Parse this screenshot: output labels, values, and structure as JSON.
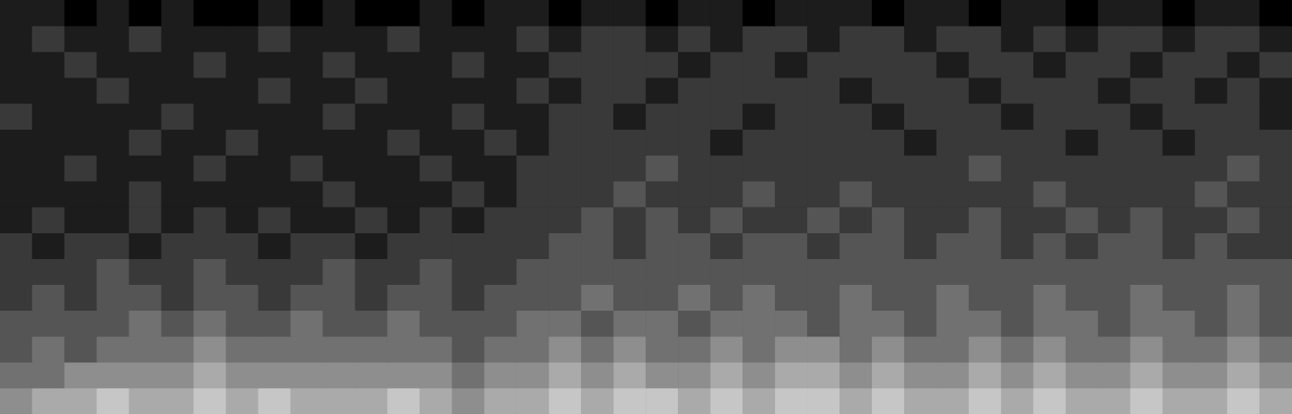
{
  "chart_data": {
    "type": "heatmap",
    "grid": false,
    "tick_labels": false,
    "ylim": [
      0,
      16
    ],
    "color_range": [
      0,
      9
    ],
    "cells": [
      [
        1,
        1,
        0,
        1,
        0,
        1,
        0,
        0,
        1,
        0,
        1,
        0,
        0,
        1,
        0,
        1,
        1,
        0,
        1,
        1,
        0,
        1,
        1,
        0,
        1,
        1,
        1,
        0,
        1,
        1,
        0,
        1,
        1,
        0,
        1,
        1,
        0,
        1,
        1,
        0
      ],
      [
        1,
        2,
        1,
        1,
        2,
        1,
        1,
        1,
        2,
        1,
        1,
        1,
        2,
        1,
        1,
        1,
        2,
        1,
        2,
        2,
        1,
        2,
        1,
        2,
        2,
        1,
        2,
        2,
        1,
        2,
        2,
        1,
        2,
        1,
        2,
        2,
        1,
        2,
        2,
        1
      ],
      [
        1,
        1,
        2,
        1,
        1,
        1,
        2,
        1,
        1,
        1,
        2,
        1,
        1,
        1,
        2,
        1,
        1,
        2,
        2,
        2,
        2,
        1,
        2,
        2,
        1,
        2,
        2,
        2,
        2,
        1,
        2,
        2,
        1,
        2,
        2,
        1,
        2,
        2,
        1,
        2
      ],
      [
        1,
        1,
        1,
        2,
        1,
        1,
        1,
        1,
        2,
        1,
        1,
        2,
        1,
        1,
        1,
        1,
        2,
        1,
        2,
        2,
        1,
        2,
        2,
        2,
        2,
        2,
        1,
        2,
        2,
        2,
        1,
        2,
        2,
        2,
        1,
        2,
        2,
        1,
        2,
        1
      ],
      [
        2,
        1,
        1,
        1,
        1,
        2,
        1,
        1,
        1,
        1,
        2,
        1,
        1,
        1,
        2,
        1,
        1,
        2,
        2,
        1,
        2,
        2,
        2,
        1,
        2,
        2,
        2,
        1,
        2,
        2,
        2,
        1,
        2,
        2,
        2,
        1,
        2,
        2,
        2,
        1
      ],
      [
        1,
        1,
        1,
        1,
        2,
        1,
        1,
        2,
        1,
        1,
        1,
        1,
        2,
        1,
        1,
        2,
        1,
        2,
        2,
        2,
        2,
        2,
        1,
        2,
        2,
        2,
        2,
        2,
        1,
        2,
        2,
        2,
        2,
        1,
        2,
        2,
        1,
        2,
        2,
        2
      ],
      [
        1,
        1,
        2,
        1,
        1,
        1,
        2,
        1,
        1,
        2,
        1,
        1,
        1,
        2,
        1,
        1,
        2,
        2,
        2,
        2,
        3,
        2,
        2,
        2,
        2,
        2,
        2,
        2,
        2,
        2,
        3,
        2,
        2,
        2,
        2,
        2,
        2,
        2,
        3,
        2
      ],
      [
        1,
        1,
        1,
        1,
        2,
        1,
        1,
        1,
        1,
        1,
        2,
        1,
        1,
        1,
        2,
        1,
        2,
        2,
        2,
        3,
        2,
        2,
        2,
        3,
        2,
        2,
        3,
        2,
        2,
        2,
        2,
        2,
        3,
        2,
        2,
        2,
        2,
        3,
        2,
        2
      ],
      [
        1,
        2,
        1,
        1,
        2,
        1,
        2,
        1,
        2,
        1,
        1,
        2,
        1,
        2,
        1,
        2,
        2,
        2,
        3,
        2,
        3,
        2,
        3,
        2,
        2,
        3,
        2,
        3,
        2,
        2,
        3,
        2,
        2,
        3,
        2,
        3,
        2,
        2,
        3,
        2
      ],
      [
        2,
        1,
        2,
        2,
        1,
        2,
        2,
        2,
        1,
        2,
        2,
        1,
        2,
        2,
        2,
        2,
        2,
        3,
        3,
        2,
        3,
        3,
        2,
        3,
        3,
        2,
        3,
        3,
        2,
        3,
        3,
        2,
        3,
        2,
        3,
        3,
        2,
        3,
        2,
        2
      ],
      [
        2,
        2,
        2,
        3,
        2,
        2,
        3,
        2,
        2,
        2,
        3,
        2,
        2,
        3,
        2,
        2,
        3,
        3,
        3,
        3,
        3,
        3,
        3,
        3,
        3,
        3,
        3,
        3,
        3,
        3,
        3,
        3,
        3,
        3,
        3,
        3,
        3,
        3,
        3,
        3
      ],
      [
        2,
        3,
        2,
        3,
        3,
        2,
        3,
        3,
        2,
        3,
        3,
        2,
        3,
        3,
        2,
        3,
        3,
        3,
        4,
        3,
        3,
        4,
        3,
        4,
        3,
        3,
        4,
        3,
        3,
        4,
        3,
        3,
        4,
        3,
        3,
        4,
        3,
        3,
        4,
        3
      ],
      [
        3,
        3,
        3,
        3,
        4,
        3,
        4,
        3,
        3,
        4,
        3,
        3,
        4,
        3,
        3,
        3,
        4,
        4,
        3,
        4,
        4,
        3,
        4,
        4,
        4,
        3,
        4,
        4,
        3,
        4,
        4,
        3,
        4,
        4,
        3,
        4,
        4,
        3,
        4,
        3
      ],
      [
        3,
        4,
        3,
        4,
        4,
        4,
        5,
        4,
        4,
        4,
        4,
        4,
        4,
        4,
        3,
        4,
        4,
        5,
        4,
        5,
        4,
        4,
        5,
        4,
        5,
        5,
        4,
        5,
        4,
        4,
        5,
        4,
        5,
        4,
        4,
        5,
        4,
        4,
        5,
        4
      ],
      [
        4,
        4,
        5,
        5,
        5,
        5,
        6,
        5,
        5,
        5,
        5,
        5,
        5,
        5,
        4,
        5,
        5,
        6,
        5,
        6,
        5,
        5,
        6,
        5,
        6,
        6,
        5,
        6,
        5,
        5,
        6,
        5,
        6,
        5,
        5,
        6,
        5,
        5,
        6,
        5
      ],
      [
        5,
        6,
        6,
        7,
        6,
        6,
        7,
        6,
        7,
        6,
        6,
        6,
        7,
        6,
        5,
        6,
        6,
        7,
        6,
        7,
        7,
        6,
        7,
        6,
        7,
        7,
        6,
        7,
        6,
        6,
        7,
        6,
        7,
        6,
        6,
        7,
        6,
        6,
        7,
        6
      ]
    ]
  }
}
